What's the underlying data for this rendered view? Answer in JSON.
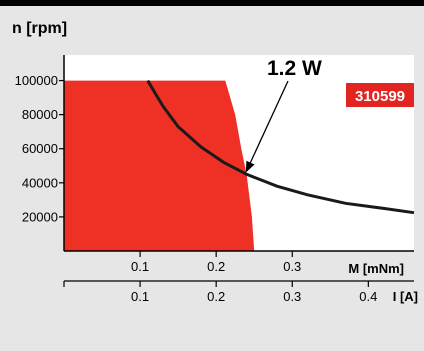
{
  "chart_data": {
    "type": "area",
    "ylabel": "n [rpm]",
    "x_axis_top": {
      "label": "M [mNm]",
      "range": [
        0,
        0.46
      ],
      "ticks": [
        0.1,
        0.2,
        0.3
      ],
      "tick_labels": [
        "0.1",
        "0.2",
        "0.3"
      ]
    },
    "x_axis_bottom": {
      "label": "I [A]",
      "range": [
        0,
        0.46
      ],
      "ticks": [
        0.1,
        0.2,
        0.3,
        0.4
      ],
      "tick_labels": [
        "0.1",
        "0.2",
        "0.3",
        "0.4"
      ]
    },
    "y_axis": {
      "range": [
        0,
        115000
      ],
      "ticks": [
        20000,
        40000,
        60000,
        80000,
        100000
      ],
      "tick_labels": [
        "20000",
        "40000",
        "60000",
        "80000",
        "100000"
      ]
    },
    "operating_range": {
      "color": "#ee3124",
      "max_speed": 100000,
      "boundary": [
        {
          "x": 0.212,
          "y": 100000
        },
        {
          "x": 0.225,
          "y": 80000
        },
        {
          "x": 0.233,
          "y": 60000
        },
        {
          "x": 0.24,
          "y": 45000
        },
        {
          "x": 0.247,
          "y": 20000
        },
        {
          "x": 0.25,
          "y": 0
        }
      ]
    },
    "power_curve": {
      "label": "1.2 W",
      "points": [
        {
          "x": 0.11,
          "y": 100000
        },
        {
          "x": 0.13,
          "y": 85000
        },
        {
          "x": 0.15,
          "y": 73000
        },
        {
          "x": 0.18,
          "y": 61000
        },
        {
          "x": 0.21,
          "y": 52000
        },
        {
          "x": 0.24,
          "y": 45000
        },
        {
          "x": 0.28,
          "y": 38000
        },
        {
          "x": 0.32,
          "y": 33000
        },
        {
          "x": 0.37,
          "y": 28000
        },
        {
          "x": 0.42,
          "y": 25000
        },
        {
          "x": 0.46,
          "y": 22500
        }
      ],
      "arrow_target": {
        "x": 0.239,
        "y": 46000
      }
    },
    "badge": {
      "text": "310599",
      "color": "#e32522"
    }
  }
}
